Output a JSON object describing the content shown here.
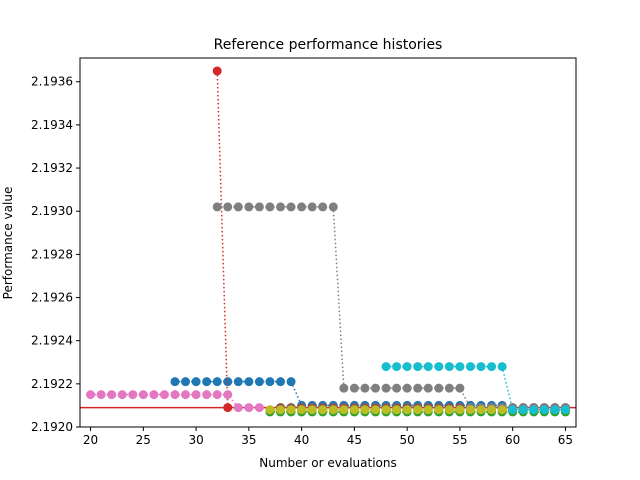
{
  "chart_data": {
    "type": "line",
    "title": "Reference performance histories",
    "xlabel": "Number or evaluations",
    "ylabel": "Performance value",
    "xlim": [
      19,
      66
    ],
    "ylim": [
      2.192,
      2.19371
    ],
    "xticks": [
      20,
      25,
      30,
      35,
      40,
      45,
      50,
      55,
      60,
      65
    ],
    "yticks": [
      2.192,
      2.1922,
      2.1924,
      2.1926,
      2.1928,
      2.193,
      2.1932,
      2.1934,
      2.1936
    ],
    "ytick_labels": [
      "2.1920",
      "2.1922",
      "2.1924",
      "2.1926",
      "2.1928",
      "2.1930",
      "2.1932",
      "2.1934",
      "2.1936"
    ],
    "grid": false,
    "line_style": "dotted",
    "reference_line": {
      "y": 2.19209,
      "color": "#d62728",
      "style": "solid"
    },
    "series": [
      {
        "color": "#1f77b4",
        "points": [
          [
            28,
            2.19221
          ],
          [
            29,
            2.19221
          ],
          [
            30,
            2.19221
          ],
          [
            31,
            2.19221
          ],
          [
            32,
            2.19221
          ],
          [
            33,
            2.19221
          ],
          [
            34,
            2.19221
          ],
          [
            35,
            2.19221
          ],
          [
            36,
            2.19221
          ],
          [
            37,
            2.19221
          ],
          [
            38,
            2.19221
          ],
          [
            39,
            2.19221
          ],
          [
            40,
            2.1921
          ],
          [
            41,
            2.1921
          ],
          [
            42,
            2.1921
          ],
          [
            43,
            2.1921
          ],
          [
            44,
            2.1921
          ],
          [
            45,
            2.1921
          ],
          [
            46,
            2.1921
          ],
          [
            47,
            2.1921
          ],
          [
            48,
            2.1921
          ],
          [
            49,
            2.1921
          ],
          [
            50,
            2.1921
          ],
          [
            51,
            2.1921
          ],
          [
            52,
            2.1921
          ],
          [
            53,
            2.1921
          ],
          [
            54,
            2.1921
          ],
          [
            55,
            2.1921
          ],
          [
            56,
            2.1921
          ],
          [
            57,
            2.1921
          ],
          [
            58,
            2.1921
          ],
          [
            59,
            2.1921
          ],
          [
            60,
            2.19208
          ],
          [
            61,
            2.19208
          ],
          [
            62,
            2.19208
          ],
          [
            63,
            2.19208
          ],
          [
            64,
            2.19208
          ],
          [
            65,
            2.19208
          ]
        ]
      },
      {
        "color": "#ff7f0e",
        "points": [
          [
            37,
            2.19208
          ],
          [
            38,
            2.19208
          ],
          [
            39,
            2.19208
          ],
          [
            40,
            2.19208
          ],
          [
            41,
            2.19208
          ],
          [
            42,
            2.19208
          ],
          [
            43,
            2.19208
          ],
          [
            44,
            2.19208
          ],
          [
            45,
            2.19208
          ],
          [
            46,
            2.19208
          ],
          [
            47,
            2.19208
          ],
          [
            48,
            2.19208
          ],
          [
            49,
            2.19208
          ],
          [
            50,
            2.19208
          ],
          [
            51,
            2.19208
          ],
          [
            52,
            2.19208
          ],
          [
            53,
            2.19208
          ],
          [
            54,
            2.19208
          ],
          [
            55,
            2.19208
          ],
          [
            56,
            2.19208
          ],
          [
            57,
            2.19208
          ],
          [
            58,
            2.19208
          ],
          [
            59,
            2.19208
          ],
          [
            60,
            2.19208
          ],
          [
            61,
            2.19208
          ],
          [
            62,
            2.19208
          ],
          [
            63,
            2.19208
          ],
          [
            64,
            2.19208
          ],
          [
            65,
            2.19208
          ]
        ]
      },
      {
        "color": "#2ca02c",
        "points": [
          [
            37,
            2.19207
          ],
          [
            38,
            2.19207
          ],
          [
            39,
            2.19207
          ],
          [
            40,
            2.19207
          ],
          [
            41,
            2.19207
          ],
          [
            42,
            2.19207
          ],
          [
            43,
            2.19207
          ],
          [
            44,
            2.19207
          ],
          [
            45,
            2.19207
          ],
          [
            46,
            2.19207
          ],
          [
            47,
            2.19207
          ],
          [
            48,
            2.19207
          ],
          [
            49,
            2.19207
          ],
          [
            50,
            2.19207
          ],
          [
            51,
            2.19207
          ],
          [
            52,
            2.19207
          ],
          [
            53,
            2.19207
          ],
          [
            54,
            2.19207
          ],
          [
            55,
            2.19207
          ],
          [
            56,
            2.19207
          ],
          [
            57,
            2.19207
          ],
          [
            58,
            2.19207
          ],
          [
            59,
            2.19207
          ],
          [
            60,
            2.19207
          ],
          [
            61,
            2.19207
          ],
          [
            62,
            2.19207
          ],
          [
            63,
            2.19207
          ],
          [
            64,
            2.19207
          ],
          [
            65,
            2.19207
          ]
        ]
      },
      {
        "color": "#d62728",
        "points": [
          [
            32,
            2.19365
          ],
          [
            33,
            2.19209
          ]
        ]
      },
      {
        "color": "#9467bd",
        "points": [
          [
            38,
            2.19209
          ],
          [
            39,
            2.19209
          ],
          [
            40,
            2.19209
          ],
          [
            41,
            2.19209
          ],
          [
            42,
            2.19209
          ],
          [
            43,
            2.19209
          ],
          [
            44,
            2.19209
          ],
          [
            45,
            2.19209
          ],
          [
            46,
            2.19209
          ],
          [
            47,
            2.19209
          ],
          [
            48,
            2.19209
          ],
          [
            49,
            2.19209
          ],
          [
            50,
            2.19209
          ],
          [
            51,
            2.19209
          ],
          [
            52,
            2.19209
          ],
          [
            53,
            2.19209
          ],
          [
            54,
            2.19209
          ],
          [
            55,
            2.19209
          ],
          [
            56,
            2.19209
          ],
          [
            57,
            2.19209
          ],
          [
            58,
            2.19209
          ],
          [
            59,
            2.19209
          ],
          [
            60,
            2.19209
          ],
          [
            61,
            2.19209
          ],
          [
            62,
            2.19209
          ],
          [
            63,
            2.19209
          ],
          [
            64,
            2.19209
          ],
          [
            65,
            2.19209
          ]
        ]
      },
      {
        "color": "#8c564b",
        "points": [
          [
            38,
            2.19209
          ],
          [
            39,
            2.19209
          ],
          [
            40,
            2.19209
          ],
          [
            41,
            2.19209
          ],
          [
            42,
            2.19209
          ],
          [
            43,
            2.19209
          ],
          [
            44,
            2.19209
          ],
          [
            45,
            2.19209
          ],
          [
            46,
            2.19209
          ],
          [
            47,
            2.19209
          ],
          [
            48,
            2.19209
          ],
          [
            49,
            2.19209
          ],
          [
            50,
            2.19209
          ],
          [
            51,
            2.19209
          ],
          [
            52,
            2.19209
          ],
          [
            53,
            2.19209
          ],
          [
            54,
            2.19209
          ],
          [
            55,
            2.19209
          ],
          [
            56,
            2.19209
          ],
          [
            57,
            2.19209
          ],
          [
            58,
            2.19209
          ],
          [
            59,
            2.19209
          ],
          [
            60,
            2.19209
          ],
          [
            61,
            2.19209
          ],
          [
            62,
            2.19209
          ],
          [
            63,
            2.19209
          ],
          [
            64,
            2.19209
          ],
          [
            65,
            2.19209
          ]
        ]
      },
      {
        "color": "#e377c2",
        "points": [
          [
            20,
            2.19215
          ],
          [
            21,
            2.19215
          ],
          [
            22,
            2.19215
          ],
          [
            23,
            2.19215
          ],
          [
            24,
            2.19215
          ],
          [
            25,
            2.19215
          ],
          [
            26,
            2.19215
          ],
          [
            27,
            2.19215
          ],
          [
            28,
            2.19215
          ],
          [
            29,
            2.19215
          ],
          [
            30,
            2.19215
          ],
          [
            31,
            2.19215
          ],
          [
            32,
            2.19215
          ],
          [
            33,
            2.19215
          ],
          [
            34,
            2.19209
          ],
          [
            35,
            2.19209
          ],
          [
            36,
            2.19209
          ]
        ]
      },
      {
        "color": "#7f7f7f",
        "points": [
          [
            32,
            2.19302
          ],
          [
            33,
            2.19302
          ],
          [
            34,
            2.19302
          ],
          [
            35,
            2.19302
          ],
          [
            36,
            2.19302
          ],
          [
            37,
            2.19302
          ],
          [
            38,
            2.19302
          ],
          [
            39,
            2.19302
          ],
          [
            40,
            2.19302
          ],
          [
            41,
            2.19302
          ],
          [
            42,
            2.19302
          ],
          [
            43,
            2.19302
          ],
          [
            44,
            2.19218
          ],
          [
            45,
            2.19218
          ],
          [
            46,
            2.19218
          ],
          [
            47,
            2.19218
          ],
          [
            48,
            2.19218
          ],
          [
            49,
            2.19218
          ],
          [
            50,
            2.19218
          ],
          [
            51,
            2.19218
          ],
          [
            52,
            2.19218
          ],
          [
            53,
            2.19218
          ],
          [
            54,
            2.19218
          ],
          [
            55,
            2.19218
          ],
          [
            56,
            2.19209
          ],
          [
            57,
            2.19209
          ],
          [
            58,
            2.19209
          ],
          [
            59,
            2.19209
          ],
          [
            60,
            2.19209
          ],
          [
            61,
            2.19209
          ],
          [
            62,
            2.19209
          ],
          [
            63,
            2.19209
          ],
          [
            64,
            2.19209
          ],
          [
            65,
            2.19209
          ]
        ]
      },
      {
        "color": "#bcbd22",
        "points": [
          [
            37,
            2.19208
          ],
          [
            38,
            2.19208
          ],
          [
            39,
            2.19208
          ],
          [
            40,
            2.19208
          ],
          [
            41,
            2.19208
          ],
          [
            42,
            2.19208
          ],
          [
            43,
            2.19208
          ],
          [
            44,
            2.19208
          ],
          [
            45,
            2.19208
          ],
          [
            46,
            2.19208
          ],
          [
            47,
            2.19208
          ],
          [
            48,
            2.19208
          ],
          [
            49,
            2.19208
          ],
          [
            50,
            2.19208
          ],
          [
            51,
            2.19208
          ],
          [
            52,
            2.19208
          ],
          [
            53,
            2.19208
          ],
          [
            54,
            2.19208
          ],
          [
            55,
            2.19208
          ],
          [
            56,
            2.19208
          ],
          [
            57,
            2.19208
          ],
          [
            58,
            2.19208
          ],
          [
            59,
            2.19208
          ]
        ]
      },
      {
        "color": "#17becf",
        "points": [
          [
            48,
            2.19228
          ],
          [
            49,
            2.19228
          ],
          [
            50,
            2.19228
          ],
          [
            51,
            2.19228
          ],
          [
            52,
            2.19228
          ],
          [
            53,
            2.19228
          ],
          [
            54,
            2.19228
          ],
          [
            55,
            2.19228
          ],
          [
            56,
            2.19228
          ],
          [
            57,
            2.19228
          ],
          [
            58,
            2.19228
          ],
          [
            59,
            2.19228
          ],
          [
            60,
            2.19208
          ],
          [
            61,
            2.19208
          ],
          [
            62,
            2.19208
          ],
          [
            63,
            2.19208
          ],
          [
            64,
            2.19208
          ],
          [
            65,
            2.19208
          ]
        ]
      }
    ]
  }
}
